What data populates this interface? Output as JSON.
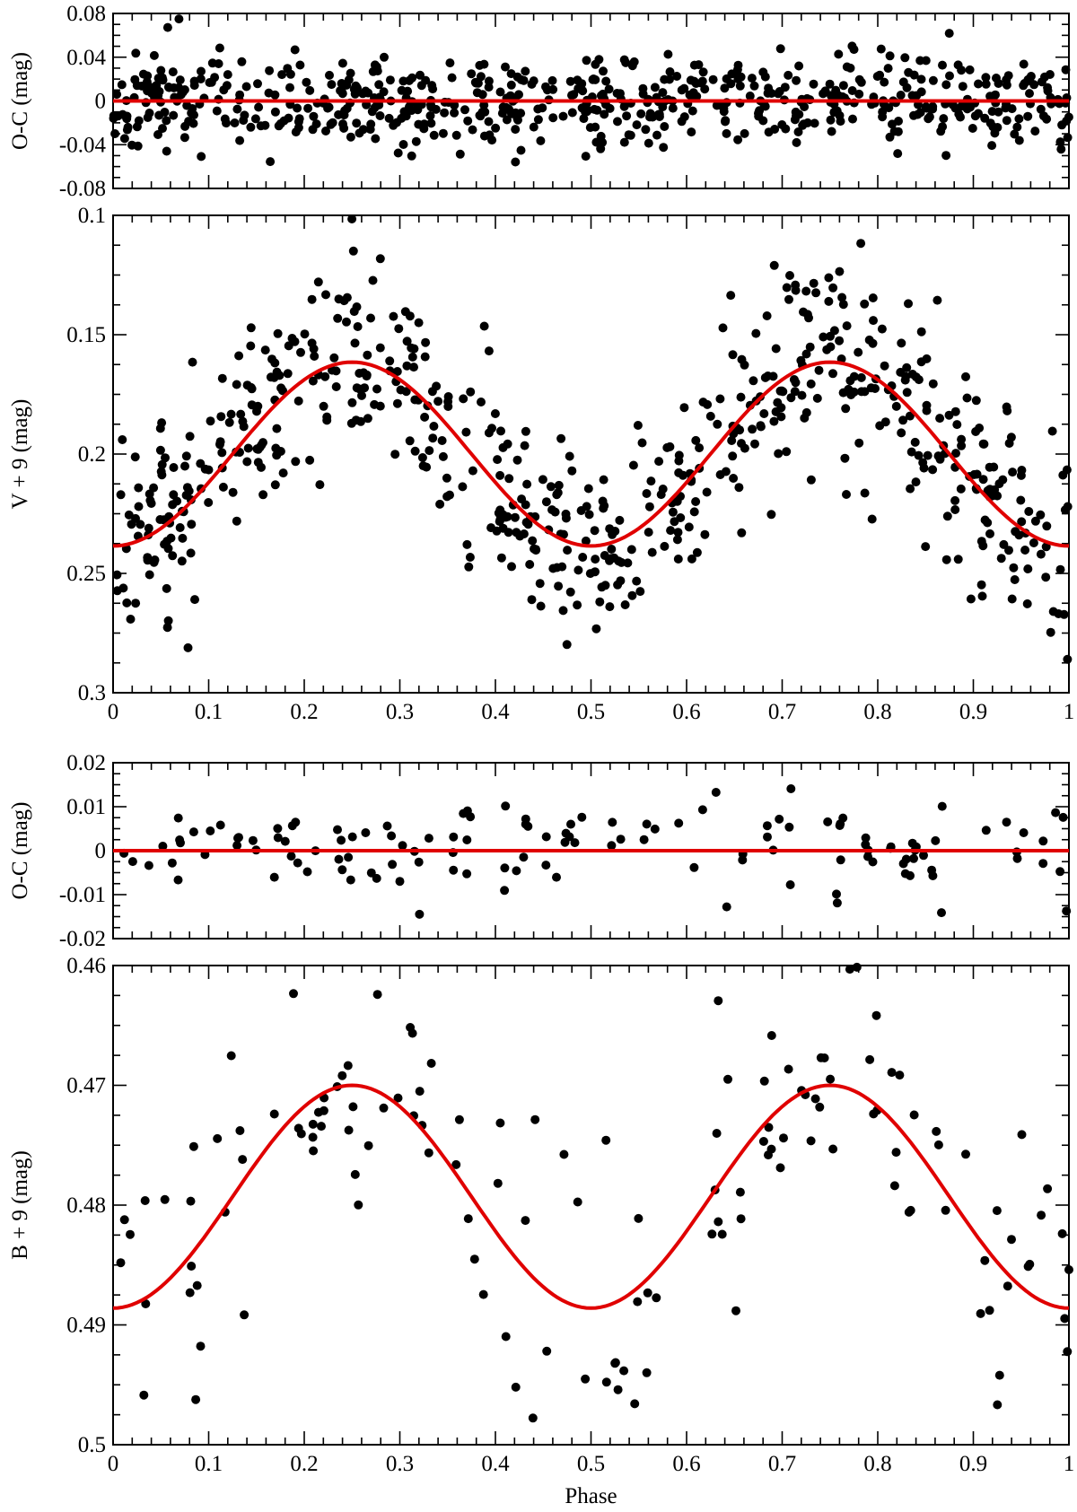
{
  "chart_data": [
    {
      "id": "panel1",
      "type": "scatter",
      "role": "residuals",
      "ylabel": "O-C (mag)",
      "xlabel": "",
      "xlim": [
        0,
        1
      ],
      "ylim": [
        -0.08,
        0.08
      ],
      "y_inverted": false,
      "x_ticks": [],
      "x_tick_labels": [],
      "y_ticks": [
        0.08,
        0.04,
        0,
        -0.04,
        -0.08
      ],
      "y_tick_labels": [
        "0.08",
        "0.04",
        "0",
        "-0.04",
        "-0.08"
      ],
      "fit": {
        "kind": "zero",
        "line_color": "#e00000"
      },
      "points": {
        "n": 640,
        "seed": 11,
        "sd": 0.022,
        "clip": 0.075
      },
      "point_color": "#000000"
    },
    {
      "id": "panel2",
      "type": "scatter",
      "role": "light-curve",
      "ylabel": "V + 9 (mag)",
      "xlabel": "",
      "xlim": [
        0,
        1
      ],
      "ylim": [
        0.1,
        0.3
      ],
      "y_inverted": true,
      "x_ticks": [
        0,
        0.1,
        0.2,
        0.3,
        0.4,
        0.5,
        0.6,
        0.7,
        0.8,
        0.9,
        1
      ],
      "x_tick_labels": [
        "0",
        "0.1",
        "0.2",
        "0.3",
        "0.4",
        "0.5",
        "0.6",
        "0.7",
        "0.8",
        "0.9",
        "1"
      ],
      "y_ticks": [
        0.1,
        0.15,
        0.2,
        0.25,
        0.3
      ],
      "y_tick_labels": [
        "0.1",
        "0.15",
        "0.2",
        "0.25",
        "0.3"
      ],
      "fit": {
        "kind": "cos2",
        "mean": 0.2,
        "amplitude": 0.0385,
        "line_color": "#e00000"
      },
      "points": {
        "n": 640,
        "seed": 23,
        "sd": 0.021,
        "clip": 0.06
      },
      "point_color": "#000000"
    },
    {
      "id": "panel3",
      "type": "scatter",
      "role": "residuals",
      "ylabel": "O-C (mag)",
      "xlabel": "",
      "xlim": [
        0,
        1
      ],
      "ylim": [
        -0.02,
        0.02
      ],
      "y_inverted": false,
      "x_ticks": [],
      "x_tick_labels": [],
      "y_ticks": [
        0.02,
        0.01,
        0,
        -0.01,
        -0.02
      ],
      "y_tick_labels": [
        "0.02",
        "0.01",
        "0",
        "-0.01",
        "-0.02"
      ],
      "fit": {
        "kind": "zero",
        "line_color": "#e00000"
      },
      "points": {
        "n": 130,
        "seed": 37,
        "sd": 0.0058,
        "clip": 0.016
      },
      "point_color": "#000000"
    },
    {
      "id": "panel4",
      "type": "scatter",
      "role": "light-curve",
      "ylabel": "B + 9 (mag)",
      "xlabel": "Phase",
      "xlim": [
        0,
        1
      ],
      "ylim": [
        0.46,
        0.5
      ],
      "y_inverted": true,
      "x_ticks": [
        0,
        0.1,
        0.2,
        0.3,
        0.4,
        0.5,
        0.6,
        0.7,
        0.8,
        0.9,
        1
      ],
      "x_tick_labels": [
        "0",
        "0.1",
        "0.2",
        "0.3",
        "0.4",
        "0.5",
        "0.6",
        "0.7",
        "0.8",
        "0.9",
        "1"
      ],
      "y_ticks": [
        0.46,
        0.47,
        0.48,
        0.49,
        0.5
      ],
      "y_tick_labels": [
        "0.46",
        "0.47",
        "0.48",
        "0.49",
        "0.5"
      ],
      "fit": {
        "kind": "cos2",
        "mean": 0.4793,
        "amplitude": 0.0093,
        "line_color": "#e00000"
      },
      "points": {
        "n": 140,
        "seed": 53,
        "sd": 0.0058,
        "clip": 0.016
      },
      "point_color": "#000000"
    }
  ]
}
